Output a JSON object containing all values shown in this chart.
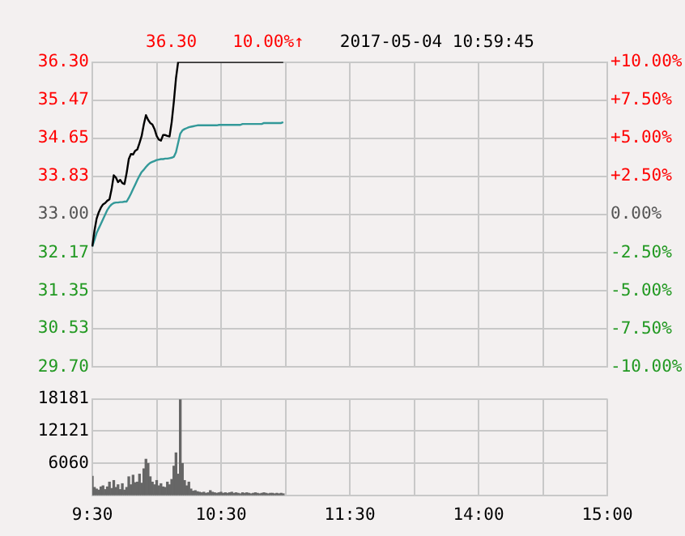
{
  "chart_data": [
    {
      "type": "line",
      "annotations": [
        "36.30",
        "10.00%↑",
        "2017-05-04 10:59:45"
      ],
      "categories": [
        null,
        null,
        null,
        null,
        null,
        null,
        null,
        null,
        null,
        null,
        null,
        null,
        null,
        null,
        null,
        null,
        null,
        null,
        null,
        null,
        null,
        null,
        null,
        null,
        null,
        null,
        null,
        null,
        null,
        null,
        null,
        null,
        null,
        null,
        null,
        null,
        null,
        null,
        null,
        null,
        null,
        null,
        null,
        null,
        null,
        null,
        null,
        null,
        null,
        null,
        null,
        null,
        null,
        null,
        null,
        null,
        null,
        null,
        null,
        null,
        null,
        null,
        null,
        null,
        null,
        null,
        null,
        null,
        null,
        null,
        null,
        null,
        null,
        null,
        null,
        null,
        null,
        null,
        null,
        null,
        null,
        null,
        null,
        null,
        null,
        null,
        null,
        null,
        null,
        null,
        null,
        null,
        null,
        null,
        null,
        null,
        null,
        null,
        null,
        null,
        null,
        null,
        null,
        null,
        null,
        null,
        null,
        null,
        null,
        null,
        null,
        null,
        null,
        null,
        null,
        null,
        null,
        null,
        null,
        null,
        null,
        null,
        null,
        null,
        null,
        null,
        null,
        null,
        null,
        null,
        null,
        null,
        null,
        null,
        null,
        null,
        null,
        null,
        null,
        null,
        null,
        null,
        null,
        null,
        null,
        null,
        null,
        null,
        null,
        null,
        null,
        null,
        null,
        null,
        null,
        null,
        null,
        null,
        null,
        null,
        null,
        null,
        null,
        null,
        null,
        null,
        null,
        null,
        null,
        null,
        null,
        null,
        null,
        null,
        null,
        null,
        null,
        null,
        null,
        null,
        null,
        null,
        null,
        null,
        null,
        null,
        null,
        null,
        null,
        null,
        null,
        null,
        null,
        null,
        null,
        null,
        null,
        null,
        null,
        null,
        null,
        null,
        null,
        null,
        null,
        null,
        null,
        null,
        null,
        null,
        null,
        null,
        null,
        null,
        null,
        null,
        null,
        null,
        null,
        null,
        null,
        null,
        null,
        null,
        null,
        null,
        null,
        null,
        null,
        null,
        null,
        null,
        null,
        null,
        null,
        null,
        null,
        null,
        null,
        null,
        null
      ],
      "ylim": [
        29.7,
        36.3
      ],
      "yticks": [
        {
          "value": 29.7,
          "label": "29.70"
        },
        30.53,
        31.35,
        32.17,
        {
          "value": 33,
          "label": "33.00"
        },
        33.83,
        34.65,
        35.47,
        {
          "value": 36.3,
          "label": "36.30"
        }
      ],
      "y2lim": [
        -10,
        10
      ],
      "y2ticks": [
        {
          "value": -10,
          "label": "-10.00%"
        },
        {
          "value": -7.5,
          "label": "-7.50%"
        },
        {
          "value": -5,
          "label": "-5.00%"
        },
        {
          "value": -2.5,
          "label": "-2.50%"
        },
        {
          "value": 0,
          "label": "0.00%"
        },
        {
          "value": 2.5,
          "label": "+2.50%"
        },
        {
          "value": 5,
          "label": "+5.00%"
        },
        {
          "value": 7.5,
          "label": "+7.50%"
        },
        {
          "value": 10,
          "label": "+10.00%"
        }
      ],
      "series": [
        {
          "color": "#000000",
          "values": [
            32.31,
            32.65,
            32.91,
            33.05,
            33.15,
            33.22,
            33.25,
            33.3,
            33.33,
            33.55,
            33.85,
            33.8,
            33.7,
            33.75,
            33.68,
            33.66,
            33.9,
            34.2,
            34.31,
            34.3,
            34.38,
            34.41,
            34.55,
            34.7,
            34.95,
            35.15,
            35.05,
            34.98,
            34.95,
            34.85,
            34.7,
            34.62,
            34.6,
            34.72,
            34.72,
            34.7,
            34.69,
            35.0,
            35.44,
            35.95,
            36.3,
            36.3,
            36.3,
            36.3,
            36.3,
            36.3,
            36.3,
            36.3,
            36.3,
            36.3,
            36.3,
            36.3,
            36.3,
            36.3,
            36.3,
            36.3,
            36.3,
            36.3,
            36.3,
            36.3,
            36.3,
            36.3,
            36.3,
            36.3,
            36.3,
            36.3,
            36.3,
            36.3,
            36.3,
            36.3,
            36.3,
            36.3,
            36.3,
            36.3,
            36.3,
            36.3,
            36.3,
            36.3,
            36.3,
            36.3,
            36.3,
            36.3,
            36.3,
            36.3,
            36.3,
            36.3,
            36.3,
            36.3,
            36.3,
            36.3,
            null,
            null,
            null,
            null,
            null,
            null,
            null,
            null,
            null,
            null,
            null,
            null,
            null,
            null,
            null,
            null,
            null,
            null,
            null,
            null,
            null,
            null,
            null,
            null,
            null,
            null,
            null,
            null,
            null,
            null,
            null,
            null,
            null,
            null,
            null,
            null,
            null,
            null,
            null,
            null,
            null,
            null,
            null,
            null,
            null,
            null,
            null,
            null,
            null,
            null,
            null,
            null,
            null,
            null,
            null,
            null,
            null,
            null,
            null,
            null,
            null,
            null,
            null,
            null,
            null,
            null,
            null,
            null,
            null,
            null,
            null,
            null,
            null,
            null,
            null,
            null,
            null,
            null,
            null,
            null,
            null,
            null,
            null,
            null,
            null,
            null,
            null,
            null,
            null,
            null,
            null,
            null,
            null,
            null,
            null,
            null,
            null,
            null,
            null,
            null,
            null,
            null,
            null,
            null,
            null,
            null,
            null,
            null,
            null,
            null,
            null,
            null,
            null,
            null,
            null,
            null,
            null,
            null,
            null,
            null,
            null,
            null,
            null,
            null,
            null,
            null,
            null,
            null,
            null,
            null,
            null,
            null,
            null,
            null,
            null,
            null,
            null,
            null,
            null,
            null,
            null,
            null,
            null,
            null,
            null,
            null,
            null,
            null,
            null,
            null,
            null
          ]
        },
        {
          "color": "#339999",
          "values": [
            32.31,
            32.45,
            32.6,
            32.7,
            32.8,
            32.9,
            33.0,
            33.1,
            33.17,
            33.22,
            33.25,
            33.26,
            33.26,
            33.27,
            33.27,
            33.28,
            33.28,
            33.36,
            33.45,
            33.55,
            33.65,
            33.75,
            33.84,
            33.92,
            33.97,
            34.03,
            34.08,
            34.12,
            34.14,
            34.16,
            34.18,
            34.19,
            34.2,
            34.2,
            34.21,
            34.21,
            34.22,
            34.23,
            34.25,
            34.35,
            34.55,
            34.75,
            34.82,
            34.85,
            34.87,
            34.89,
            34.9,
            34.91,
            34.92,
            34.93,
            34.93,
            34.93,
            34.93,
            34.93,
            34.93,
            34.93,
            34.93,
            34.93,
            34.93,
            34.94,
            34.94,
            34.94,
            34.94,
            34.94,
            34.94,
            34.94,
            34.94,
            34.94,
            34.94,
            34.94,
            34.96,
            34.96,
            34.96,
            34.96,
            34.96,
            34.96,
            34.96,
            34.96,
            34.96,
            34.96,
            34.98,
            34.98,
            34.98,
            34.98,
            34.98,
            34.98,
            34.98,
            34.98,
            34.98,
            35.0,
            null,
            null,
            null,
            null,
            null,
            null,
            null,
            null,
            null,
            null,
            null,
            null,
            null,
            null,
            null,
            null,
            null,
            null,
            null,
            null,
            null,
            null,
            null,
            null,
            null,
            null,
            null,
            null,
            null,
            null,
            null,
            null,
            null,
            null,
            null,
            null,
            null,
            null,
            null,
            null,
            null,
            null,
            null,
            null,
            null,
            null,
            null,
            null,
            null,
            null,
            null,
            null,
            null,
            null,
            null,
            null,
            null,
            null,
            null,
            null,
            null,
            null,
            null,
            null,
            null,
            null,
            null,
            null,
            null,
            null,
            null,
            null,
            null,
            null,
            null,
            null,
            null,
            null,
            null,
            null,
            null,
            null,
            null,
            null,
            null,
            null,
            null,
            null,
            null,
            null,
            null,
            null,
            null,
            null,
            null,
            null,
            null,
            null,
            null,
            null,
            null,
            null,
            null,
            null,
            null,
            null,
            null,
            null,
            null,
            null,
            null,
            null,
            null,
            null,
            null,
            null,
            null,
            null,
            null,
            null,
            null,
            null,
            null,
            null,
            null,
            null,
            null,
            null,
            null,
            null,
            null,
            null,
            null,
            null,
            null,
            null,
            null,
            null,
            null,
            null,
            null,
            null,
            null,
            null,
            null,
            null,
            null,
            null,
            null,
            null,
            null
          ]
        }
      ],
      "grid": true,
      "tick_labels": "y",
      "marker": "none",
      "line_style": "solid",
      "legend": false
    },
    {
      "type": "bar",
      "categories": [
        "9:30",
        null,
        null,
        null,
        null,
        null,
        null,
        null,
        null,
        null,
        null,
        null,
        null,
        null,
        null,
        null,
        null,
        null,
        null,
        null,
        null,
        null,
        null,
        null,
        null,
        null,
        null,
        null,
        null,
        null,
        null,
        null,
        null,
        null,
        null,
        null,
        null,
        null,
        null,
        null,
        null,
        null,
        null,
        null,
        null,
        null,
        null,
        null,
        null,
        null,
        null,
        null,
        null,
        null,
        null,
        null,
        null,
        null,
        null,
        null,
        "10:30",
        null,
        null,
        null,
        null,
        null,
        null,
        null,
        null,
        null,
        null,
        null,
        null,
        null,
        null,
        null,
        null,
        null,
        null,
        null,
        null,
        null,
        null,
        null,
        null,
        null,
        null,
        null,
        null,
        null,
        null,
        null,
        null,
        null,
        null,
        null,
        null,
        null,
        null,
        null,
        null,
        null,
        null,
        null,
        null,
        null,
        null,
        null,
        null,
        null,
        null,
        null,
        null,
        null,
        null,
        null,
        null,
        null,
        null,
        null,
        "11:30",
        null,
        null,
        null,
        null,
        null,
        null,
        null,
        null,
        null,
        null,
        null,
        null,
        null,
        null,
        null,
        null,
        null,
        null,
        null,
        null,
        null,
        null,
        null,
        null,
        null,
        null,
        null,
        null,
        null,
        null,
        null,
        null,
        null,
        null,
        null,
        null,
        null,
        null,
        null,
        null,
        null,
        null,
        null,
        null,
        null,
        null,
        null,
        null,
        null,
        null,
        null,
        null,
        null,
        null,
        null,
        null,
        null,
        null,
        null,
        "14:00",
        null,
        null,
        null,
        null,
        null,
        null,
        null,
        null,
        null,
        null,
        null,
        null,
        null,
        null,
        null,
        null,
        null,
        null,
        null,
        null,
        null,
        null,
        null,
        null,
        null,
        null,
        null,
        null,
        null,
        null,
        null,
        null,
        null,
        null,
        null,
        null,
        null,
        null,
        null,
        null,
        null,
        null,
        null,
        null,
        null,
        null,
        null,
        null,
        null,
        null,
        null,
        null,
        null,
        null,
        null,
        null,
        null,
        null,
        null,
        "15:00"
      ],
      "ylim": [
        0,
        18181
      ],
      "yticks": [
        {
          "value": 0,
          "label": null
        },
        6060,
        12121,
        18181
      ],
      "series": [
        {
          "color": "#666666",
          "values": [
            3600,
            1500,
            1200,
            1000,
            1600,
            1800,
            1100,
            1600,
            2500,
            1300,
            2800,
            1500,
            2000,
            1100,
            2200,
            1000,
            1500,
            3500,
            2000,
            3800,
            2400,
            2500,
            4000,
            2300,
            5000,
            6800,
            6000,
            3500,
            2500,
            2000,
            2800,
            1800,
            2200,
            1600,
            1500,
            2500,
            2000,
            3000,
            5500,
            8000,
            4000,
            18000,
            6000,
            2800,
            1800,
            2500,
            1200,
            800,
            900,
            700,
            600,
            500,
            600,
            400,
            500,
            900,
            600,
            500,
            400,
            500,
            600,
            400,
            500,
            400,
            500,
            600,
            400,
            500,
            400,
            300,
            500,
            400,
            500,
            400,
            300,
            400,
            500,
            400,
            300,
            400,
            500,
            400,
            300,
            400,
            400,
            300,
            400,
            300,
            400,
            300,
            null,
            null,
            null,
            null,
            null,
            null,
            null,
            null,
            null,
            null,
            null,
            null,
            null,
            null,
            null,
            null,
            null,
            null,
            null,
            null,
            null,
            null,
            null,
            null,
            null,
            null,
            null,
            null,
            null,
            null,
            null,
            null,
            null,
            null,
            null,
            null,
            null,
            null,
            null,
            null,
            null,
            null,
            null,
            null,
            null,
            null,
            null,
            null,
            null,
            null,
            null,
            null,
            null,
            null,
            null,
            null,
            null,
            null,
            null,
            null,
            null,
            null,
            null,
            null,
            null,
            null,
            null,
            null,
            null,
            null,
            null,
            null,
            null,
            null,
            null,
            null,
            null,
            null,
            null,
            null,
            null,
            null,
            null,
            null,
            null,
            null,
            null,
            null,
            null,
            null,
            null,
            null,
            null,
            null,
            null,
            null,
            null,
            null,
            null,
            null,
            null,
            null,
            null,
            null,
            null,
            null,
            null,
            null,
            null,
            null,
            null,
            null,
            null,
            null,
            null,
            null,
            null,
            null,
            null,
            null,
            null,
            null,
            null,
            null,
            null,
            null,
            null,
            null,
            null,
            null,
            null,
            null,
            null,
            null,
            null,
            null,
            null,
            null,
            null,
            null,
            null,
            null,
            null,
            null,
            null,
            null,
            null,
            null,
            null,
            null,
            null
          ]
        }
      ],
      "grid": true,
      "legend": false
    }
  ]
}
